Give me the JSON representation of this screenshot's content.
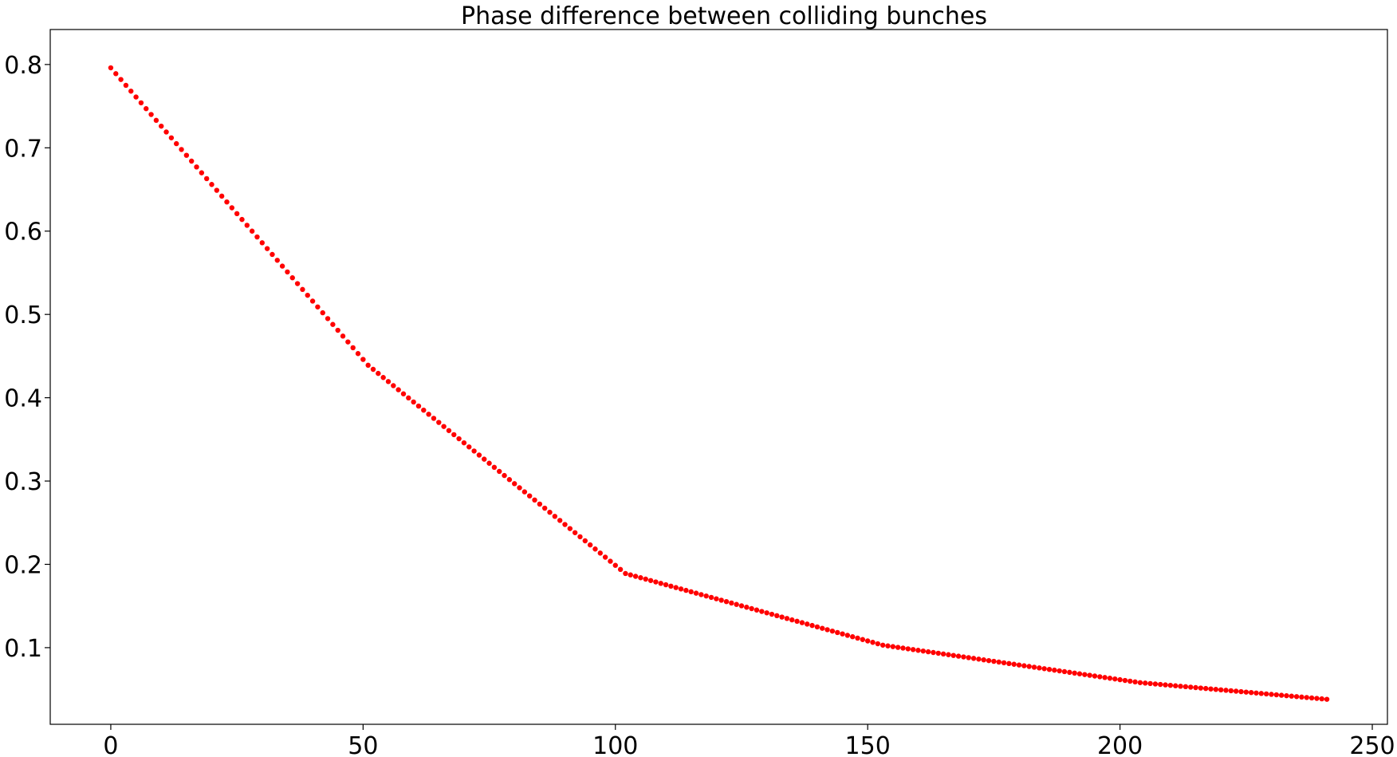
{
  "chart_data": {
    "type": "scatter",
    "title": "Phase difference between colliding bunches",
    "xlabel": "",
    "ylabel": "",
    "xlim": [
      -12,
      253
    ],
    "ylim": [
      0.008,
      0.842
    ],
    "grid": false,
    "x_ticks": [
      {
        "value": 0,
        "label": "0"
      },
      {
        "value": 50,
        "label": "50"
      },
      {
        "value": 100,
        "label": "100"
      },
      {
        "value": 150,
        "label": "150"
      },
      {
        "value": 200,
        "label": "200"
      },
      {
        "value": 250,
        "label": "250"
      }
    ],
    "y_ticks": [
      {
        "value": 0.1,
        "label": "0.1"
      },
      {
        "value": 0.2,
        "label": "0.2"
      },
      {
        "value": 0.3,
        "label": "0.3"
      },
      {
        "value": 0.4,
        "label": "0.4"
      },
      {
        "value": 0.5,
        "label": "0.5"
      },
      {
        "value": 0.6,
        "label": "0.6"
      },
      {
        "value": 0.7,
        "label": "0.7"
      },
      {
        "value": 0.8,
        "label": "0.8"
      }
    ],
    "marker_color": "#ff0000",
    "segments": [
      {
        "x_start": 0,
        "x_end": 51,
        "y_start": 0.796,
        "y_end": 0.439
      },
      {
        "x_start": 51,
        "x_end": 102,
        "y_start": 0.439,
        "y_end": 0.189
      },
      {
        "x_start": 102,
        "x_end": 153,
        "y_start": 0.189,
        "y_end": 0.103
      },
      {
        "x_start": 153,
        "x_end": 204,
        "y_start": 0.103,
        "y_end": 0.058
      },
      {
        "x_start": 204,
        "x_end": 241,
        "y_start": 0.058,
        "y_end": 0.038
      }
    ]
  }
}
